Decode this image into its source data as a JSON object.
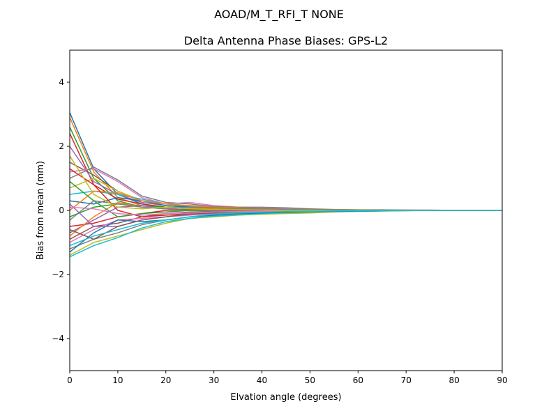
{
  "chart_data": {
    "type": "line",
    "suptitle": "AOAD/M_T_RFI_T  NONE",
    "title": "Delta Antenna Phase Biases: GPS-L2",
    "xlabel": "Elvation angle (degrees)",
    "ylabel": "Bias from mean (mm)",
    "xlim": [
      0,
      90
    ],
    "ylim": [
      -5,
      5
    ],
    "xticks": [
      0,
      10,
      20,
      30,
      40,
      50,
      60,
      70,
      80,
      90
    ],
    "yticks": [
      -4,
      -2,
      0,
      2,
      4
    ],
    "grid": false,
    "colors": [
      "#1f77b4",
      "#ff7f0e",
      "#2ca02c",
      "#d62728",
      "#9467bd",
      "#8c564b",
      "#e377c2",
      "#7f7f7f",
      "#bcbd22",
      "#17becf"
    ],
    "x": [
      0,
      5,
      10,
      15,
      20,
      25,
      30,
      35,
      40,
      45,
      50,
      55,
      60,
      65,
      70,
      75,
      80,
      85,
      90
    ],
    "series": [
      {
        "values": [
          3.05,
          1.3,
          0.5,
          0.2,
          0.1,
          0.08,
          0.05,
          0.03,
          0.02,
          0.02,
          0.01,
          0,
          0.01,
          0,
          0,
          0,
          0,
          0,
          0
        ]
      },
      {
        "values": [
          2.9,
          1.2,
          0.4,
          0.15,
          0.05,
          0.1,
          0.06,
          0.04,
          0.03,
          0.02,
          0.01,
          0.01,
          0,
          0.01,
          0,
          0,
          0,
          0,
          0
        ]
      },
      {
        "values": [
          2.6,
          1.0,
          0.3,
          0.1,
          0.05,
          0.02,
          0,
          0.02,
          0.01,
          0,
          0,
          0,
          0,
          0,
          0,
          0,
          0,
          0,
          0
        ]
      },
      {
        "values": [
          2.4,
          0.8,
          0.35,
          0.2,
          0.1,
          0.05,
          0.03,
          0.02,
          0.01,
          0.01,
          0,
          0,
          0,
          0,
          0,
          0,
          0,
          0,
          0
        ]
      },
      {
        "values": [
          2.0,
          0.9,
          0.5,
          0.25,
          0.15,
          0.1,
          0.05,
          0.04,
          0.03,
          0.02,
          0.01,
          0.01,
          0.01,
          0,
          0,
          0,
          0,
          0,
          0
        ]
      },
      {
        "values": [
          1.5,
          1.1,
          0.6,
          0.3,
          0.2,
          0.15,
          0.1,
          0.06,
          0.05,
          0.03,
          0.02,
          0.01,
          0.01,
          0,
          0,
          0,
          0,
          0,
          0
        ]
      },
      {
        "values": [
          1.2,
          1.3,
          0.9,
          0.4,
          0.2,
          0.25,
          0.15,
          0.1,
          0.08,
          0.05,
          0.03,
          0.02,
          0.02,
          0.01,
          0.01,
          0,
          0,
          0,
          0
        ]
      },
      {
        "values": [
          1.0,
          1.35,
          0.95,
          0.45,
          0.25,
          0.2,
          0.12,
          0.1,
          0.1,
          0.08,
          0.05,
          0.03,
          0.02,
          0.02,
          0.01,
          0.01,
          0,
          0,
          0
        ]
      },
      {
        "values": [
          0.7,
          1.0,
          0.6,
          0.3,
          0.15,
          0.1,
          0.08,
          0.06,
          0.04,
          0.03,
          0.02,
          0.01,
          0.01,
          0,
          0,
          0,
          0,
          0,
          0
        ]
      },
      {
        "values": [
          0.5,
          0.6,
          0.5,
          0.35,
          0.2,
          0.12,
          0.1,
          0.05,
          0.03,
          0.02,
          0.01,
          0,
          0,
          0,
          0,
          0,
          0,
          0,
          0
        ]
      },
      {
        "values": [
          0.3,
          0.2,
          0.4,
          0.3,
          0.15,
          0.1,
          0.05,
          0.03,
          0.02,
          0.01,
          0,
          0,
          0,
          0,
          0,
          0,
          0,
          0,
          0
        ]
      },
      {
        "values": [
          0.0,
          0.6,
          0.55,
          0.3,
          0.2,
          0.15,
          0.1,
          0.08,
          0.05,
          0.04,
          0.02,
          0.01,
          0.01,
          0,
          0,
          0,
          0,
          0,
          0
        ]
      },
      {
        "values": [
          -0.2,
          0.1,
          0.2,
          0.15,
          0.1,
          0.05,
          0.02,
          0,
          -0.02,
          -0.01,
          0,
          0,
          0,
          0,
          0,
          0,
          0,
          0,
          0
        ]
      },
      {
        "values": [
          -0.5,
          -0.4,
          -0.2,
          -0.1,
          0,
          0.02,
          0.01,
          0,
          0,
          0,
          0,
          0,
          0,
          0,
          0,
          0,
          0,
          0,
          0
        ]
      },
      {
        "values": [
          -0.7,
          -0.3,
          0.1,
          0.15,
          0.05,
          0,
          -0.02,
          -0.03,
          -0.02,
          -0.01,
          0,
          0,
          0,
          0,
          0,
          0,
          0,
          0,
          0
        ]
      },
      {
        "values": [
          -0.9,
          -0.5,
          -0.4,
          -0.2,
          -0.1,
          -0.05,
          -0.04,
          -0.03,
          -0.02,
          -0.01,
          0,
          0,
          0,
          0,
          0,
          0,
          0,
          0,
          0
        ]
      },
      {
        "values": [
          -1.0,
          -0.6,
          -0.3,
          -0.25,
          -0.2,
          -0.15,
          -0.1,
          -0.08,
          -0.05,
          -0.03,
          -0.02,
          -0.01,
          0,
          0,
          0,
          0,
          0,
          0,
          0
        ]
      },
      {
        "values": [
          -1.2,
          -0.9,
          -0.7,
          -0.45,
          -0.3,
          -0.2,
          -0.15,
          -0.12,
          -0.1,
          -0.08,
          -0.05,
          -0.03,
          -0.02,
          -0.01,
          0,
          0,
          0,
          0,
          0
        ]
      },
      {
        "values": [
          -1.4,
          -1.0,
          -0.8,
          -0.6,
          -0.4,
          -0.25,
          -0.2,
          -0.15,
          -0.12,
          -0.1,
          -0.08,
          -0.05,
          -0.03,
          -0.02,
          -0.01,
          0,
          0,
          0,
          0
        ]
      },
      {
        "values": [
          -1.45,
          -1.1,
          -0.85,
          -0.55,
          -0.35,
          -0.25,
          -0.18,
          -0.14,
          -0.1,
          -0.07,
          -0.05,
          -0.04,
          -0.03,
          -0.02,
          -0.01,
          0,
          0,
          0,
          0
        ]
      },
      {
        "values": [
          -1.3,
          -0.7,
          -0.3,
          -0.35,
          -0.3,
          -0.2,
          -0.15,
          -0.1,
          -0.08,
          -0.06,
          -0.04,
          -0.03,
          -0.02,
          -0.01,
          0,
          0,
          0,
          0,
          0
        ]
      },
      {
        "values": [
          -0.8,
          -0.2,
          0.25,
          0.1,
          0.05,
          0.08,
          0.06,
          0.05,
          0.04,
          0.03,
          0.02,
          0.02,
          0.01,
          0.01,
          0,
          0,
          0,
          0,
          0
        ]
      },
      {
        "values": [
          0.9,
          0.3,
          -0.2,
          -0.1,
          -0.05,
          0,
          0.02,
          0.01,
          0,
          0,
          0,
          0,
          0,
          0,
          0,
          0,
          0,
          0,
          0
        ]
      },
      {
        "values": [
          1.3,
          0.8,
          0,
          -0.2,
          -0.15,
          -0.1,
          -0.05,
          -0.04,
          -0.03,
          -0.02,
          -0.01,
          0,
          0,
          0,
          0,
          0,
          0,
          0,
          0
        ]
      },
      {
        "values": [
          0.2,
          -0.5,
          -0.5,
          -0.3,
          -0.2,
          -0.1,
          -0.05,
          -0.03,
          -0.02,
          -0.01,
          0,
          0,
          0,
          0,
          0,
          0,
          0,
          0,
          0
        ]
      },
      {
        "values": [
          -0.6,
          -0.9,
          -0.5,
          -0.3,
          -0.2,
          -0.12,
          -0.08,
          -0.05,
          -0.03,
          -0.02,
          -0.01,
          0,
          0,
          0,
          0,
          0,
          0,
          0,
          0
        ]
      },
      {
        "values": [
          0.1,
          0.05,
          -0.1,
          -0.15,
          -0.1,
          -0.08,
          -0.05,
          -0.04,
          -0.03,
          -0.02,
          -0.01,
          0,
          0,
          0,
          0,
          0,
          0,
          0,
          0
        ]
      },
      {
        "values": [
          -0.3,
          0.3,
          0.2,
          0.1,
          0.05,
          0.1,
          0.08,
          0.06,
          0.05,
          0.04,
          0.02,
          0.02,
          0.01,
          0.01,
          0,
          0,
          0,
          0,
          0
        ]
      },
      {
        "values": [
          1.7,
          0.5,
          0.1,
          0.05,
          0.1,
          0.05,
          0.03,
          0.02,
          0.01,
          0,
          0,
          0,
          0,
          0,
          0,
          0,
          0,
          0,
          0
        ]
      },
      {
        "values": [
          -1.1,
          -0.8,
          -0.6,
          -0.4,
          -0.3,
          -0.2,
          -0.12,
          -0.08,
          -0.06,
          -0.04,
          -0.03,
          -0.02,
          -0.01,
          0,
          0,
          0,
          0,
          0,
          0
        ]
      }
    ]
  }
}
